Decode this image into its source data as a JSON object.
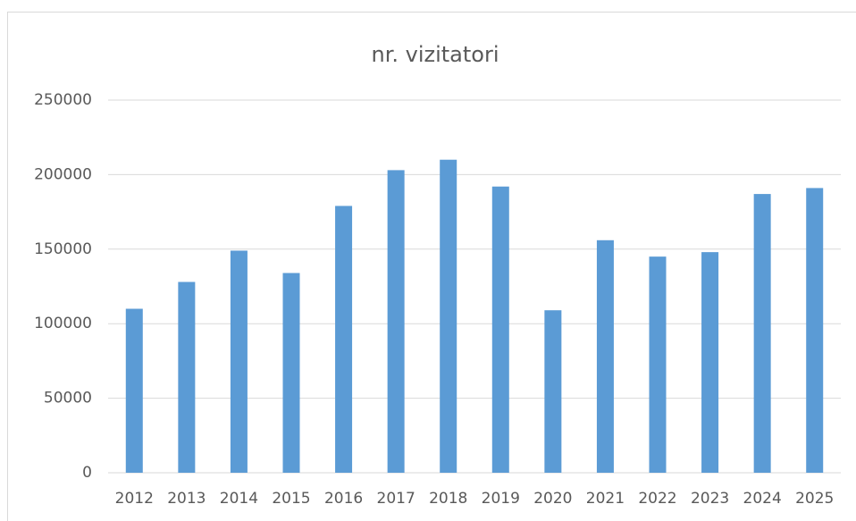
{
  "chart_data": {
    "type": "bar",
    "title": "nr. vizitatori",
    "categories": [
      "2012",
      "2013",
      "2014",
      "2015",
      "2016",
      "2017",
      "2018",
      "2019",
      "2020",
      "2021",
      "2022",
      "2023",
      "2024",
      "2025"
    ],
    "values": [
      110000,
      128000,
      149000,
      134000,
      179000,
      203000,
      210000,
      192000,
      109000,
      156000,
      145000,
      148000,
      187000,
      191000
    ],
    "color": "#5b9bd5",
    "ylim": [
      0,
      250000
    ],
    "yticks": [
      0,
      50000,
      100000,
      150000,
      200000,
      250000
    ],
    "grid": true
  }
}
